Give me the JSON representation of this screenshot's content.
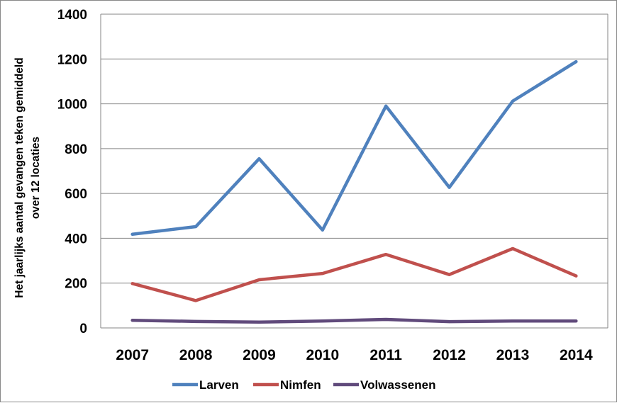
{
  "chart_data": {
    "type": "line",
    "categories": [
      "2007",
      "2008",
      "2009",
      "2010",
      "2011",
      "2012",
      "2013",
      "2014"
    ],
    "ylabel": [
      "Het jaarlijks aantal gevangen teken gemiddeld",
      "over 12 locaties"
    ],
    "ylim": [
      0,
      1400
    ],
    "yticks": [
      0,
      200,
      400,
      600,
      800,
      1000,
      1200,
      1400
    ],
    "grid": "horizontal",
    "legend_position": "bottom",
    "series": [
      {
        "name": "Larven",
        "color": "#4F81BD",
        "values": [
          418,
          452,
          755,
          437,
          990,
          627,
          1012,
          1188
        ]
      },
      {
        "name": "Nimfen",
        "color": "#C0504D",
        "values": [
          198,
          122,
          215,
          243,
          328,
          238,
          354,
          232
        ]
      },
      {
        "name": "Volwassenen",
        "color": "#604A7B",
        "values": [
          34,
          29,
          26,
          31,
          38,
          28,
          31,
          31
        ]
      }
    ]
  }
}
